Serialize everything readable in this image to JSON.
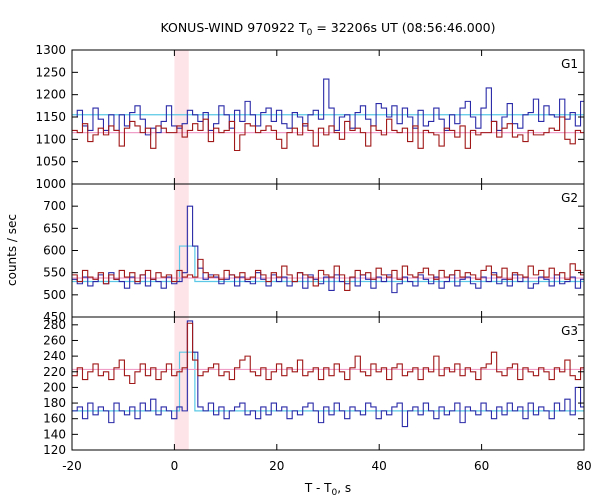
{
  "title": "KONUS-WIND 970922 T",
  "title_sub": "0",
  "title_rest": " = 32206s UT (08:56:46.000)",
  "xlabel": "T - T",
  "xlabel_sub": "0",
  "xlabel_rest": ", s",
  "ylabel": "counts / sec",
  "chart_data": {
    "type": "line",
    "title": "KONUS-WIND 970922 T0 = 32206s UT (08:56:46.000)",
    "xlabel": "T - T0, s",
    "ylabel": "counts / sec",
    "xlim": [
      -20,
      80
    ],
    "x_ticks": [
      -20,
      0,
      20,
      40,
      60,
      80
    ],
    "x_tick_labels": [
      "-20",
      "0",
      "20",
      "40",
      "60",
      "80"
    ],
    "highlight_interval": [
      0,
      2.8
    ],
    "colors": {
      "blue": "#2a2aa8",
      "red": "#a01818",
      "cyan": "#5ac8e6",
      "pink": "#f0a0c8",
      "highlight": "#fde4e8"
    },
    "panels": [
      {
        "label": "G1",
        "ylim": [
          1000,
          1300
        ],
        "yticks": [
          1000,
          1050,
          1100,
          1150,
          1200,
          1250,
          1300
        ],
        "ytick_labels": [
          "1000",
          "1050",
          "1100",
          "1150",
          "1200",
          "1250",
          "1300"
        ],
        "series": [
          {
            "color": "blue",
            "x0": -20,
            "dx": 1.024,
            "values": [
              1150,
              1165,
              1130,
              1120,
              1170,
              1145,
              1120,
              1155,
              1120,
              1155,
              1130,
              1160,
              1175,
              1145,
              1110,
              1125,
              1115,
              1140,
              1175,
              1130,
              1125,
              1135,
              1165,
              1155,
              1140,
              1160,
              1120,
              1135,
              1175,
              1155,
              1125,
              1165,
              1140,
              1185,
              1155,
              1130,
              1160,
              1170,
              1140,
              1165,
              1135,
              1125,
              1160,
              1150,
              1130,
              1155,
              1165,
              1145,
              1235,
              1170,
              1120,
              1150,
              1155,
              1125,
              1160,
              1175,
              1145,
              1130,
              1180,
              1170,
              1150,
              1175,
              1135,
              1170,
              1150,
              1125,
              1165,
              1130,
              1140,
              1170,
              1145,
              1120,
              1155,
              1135,
              1170,
              1185,
              1150,
              1125,
              1170,
              1215,
              1140,
              1120,
              1150,
              1180,
              1135,
              1125,
              1155,
              1160,
              1190,
              1140,
              1175,
              1155,
              1150,
              1190,
              1145,
              1160,
              1130,
              1185,
              1140
            ]
          },
          {
            "color": "red",
            "x0": -20,
            "dx": 1.024,
            "values": [
              1120,
              1115,
              1135,
              1095,
              1110,
              1125,
              1110,
              1130,
              1120,
              1085,
              1125,
              1140,
              1130,
              1115,
              1125,
              1080,
              1130,
              1125,
              1115,
              1115,
              1130,
              1105,
              1120,
              1135,
              1120,
              1145,
              1095,
              1125,
              1115,
              1120,
              1140,
              1075,
              1110,
              1135,
              1130,
              1115,
              1120,
              1130,
              1120,
              1100,
              1080,
              1115,
              1125,
              1110,
              1135,
              1120,
              1085,
              1125,
              1110,
              1130,
              1115,
              1100,
              1140,
              1120,
              1125,
              1115,
              1085,
              1130,
              1120,
              1110,
              1145,
              1120,
              1115,
              1125,
              1095,
              1130,
              1080,
              1120,
              1115,
              1110,
              1085,
              1125,
              1120,
              1105,
              1130,
              1080,
              1120,
              1110,
              1115,
              1115,
              1140,
              1105,
              1125,
              1135,
              1105,
              1110,
              1095,
              1120,
              1110,
              1110,
              1115,
              1125,
              1120,
              1150,
              1100,
              1090,
              1120,
              1115,
              1095
            ]
          }
        ],
        "fits": [
          {
            "color": "cyan",
            "value": 1155,
            "bump": null
          },
          {
            "color": "pink",
            "value": 1115,
            "bump": null
          }
        ]
      },
      {
        "label": "G2",
        "ylim": [
          450,
          750
        ],
        "yticks": [
          450,
          500,
          550,
          600,
          650,
          700
        ],
        "ytick_labels": [
          "450",
          "500",
          "550",
          "600",
          "650",
          "700"
        ],
        "series": [
          {
            "color": "blue",
            "x0": -20,
            "dx": 1.024,
            "values": [
              535,
              525,
              540,
              520,
              530,
              545,
              525,
              550,
              535,
              530,
              515,
              540,
              525,
              545,
              520,
              535,
              530,
              515,
              540,
              525,
              530,
              550,
              700,
              610,
              560,
              535,
              545,
              540,
              525,
              535,
              545,
              520,
              540,
              530,
              525,
              550,
              535,
              520,
              545,
              530,
              540,
              520,
              530,
              550,
              515,
              545,
              535,
              525,
              540,
              510,
              545,
              530,
              525,
              540,
              520,
              545,
              535,
              515,
              540,
              530,
              545,
              505,
              525,
              540,
              530,
              520,
              545,
              535,
              525,
              540,
              515,
              530,
              545,
              520,
              535,
              540,
              525,
              515,
              540,
              530,
              550,
              525,
              535,
              520,
              545,
              530,
              540,
              515,
              525,
              540,
              535,
              520,
              545,
              525,
              530,
              540,
              515,
              535,
              525
            ]
          },
          {
            "color": "red",
            "x0": -20,
            "dx": 1.024,
            "values": [
              545,
              530,
              555,
              540,
              535,
              550,
              525,
              545,
              535,
              555,
              540,
              550,
              530,
              545,
              555,
              535,
              550,
              540,
              545,
              530,
              555,
              540,
              545,
              540,
              580,
              550,
              540,
              545,
              535,
              555,
              545,
              540,
              550,
              535,
              540,
              555,
              545,
              530,
              550,
              540,
              565,
              545,
              530,
              550,
              545,
              540,
              520,
              555,
              545,
              540,
              565,
              545,
              510,
              540,
              555,
              545,
              550,
              535,
              560,
              545,
              540,
              555,
              535,
              565,
              545,
              540,
              550,
              560,
              545,
              535,
              555,
              540,
              545,
              555,
              540,
              550,
              545,
              535,
              555,
              565,
              545,
              540,
              560,
              535,
              550,
              545,
              540,
              565,
              545,
              555,
              540,
              560,
              545,
              550,
              535,
              570,
              555,
              545,
              560
            ]
          }
        ],
        "fits": [
          {
            "color": "cyan",
            "value": 530,
            "bump": {
              "x": [
                1.0,
                4.0
              ],
              "value": 610
            }
          },
          {
            "color": "pink",
            "value": 538,
            "bump": null
          }
        ]
      },
      {
        "label": "G3",
        "ylim": [
          120,
          290
        ],
        "yticks": [
          120,
          140,
          160,
          180,
          200,
          220,
          240,
          260,
          280
        ],
        "ytick_labels": [
          "120",
          "140",
          "160",
          "180",
          "200",
          "220",
          "240",
          "260",
          "280"
        ],
        "series": [
          {
            "color": "blue",
            "x0": -20,
            "dx": 1.024,
            "values": [
              170,
              175,
              160,
              180,
              165,
              175,
              170,
              155,
              180,
              170,
              165,
              175,
              160,
              180,
              170,
              185,
              165,
              175,
              170,
              160,
              175,
              170,
              285,
              245,
              175,
              170,
              180,
              165,
              175,
              160,
              170,
              175,
              180,
              165,
              170,
              160,
              175,
              165,
              180,
              170,
              175,
              160,
              170,
              165,
              175,
              180,
              170,
              155,
              175,
              165,
              180,
              170,
              160,
              175,
              170,
              165,
              180,
              175,
              160,
              170,
              165,
              175,
              180,
              150,
              170,
              175,
              165,
              180,
              170,
              160,
              175,
              165,
              170,
              180,
              155,
              175,
              170,
              165,
              180,
              170,
              160,
              175,
              165,
              180,
              170,
              175,
              160,
              180,
              165,
              175,
              170,
              160,
              180,
              170,
              185,
              165,
              200,
              175,
              170
            ]
          },
          {
            "color": "red",
            "x0": -20,
            "dx": 1.024,
            "values": [
              215,
              225,
              210,
              220,
              230,
              215,
              220,
              210,
              225,
              235,
              215,
              205,
              220,
              230,
              215,
              225,
              210,
              220,
              230,
              215,
              220,
              225,
              282,
              235,
              215,
              220,
              225,
              230,
              215,
              220,
              210,
              225,
              235,
              240,
              220,
              215,
              225,
              210,
              220,
              230,
              215,
              225,
              220,
              235,
              215,
              220,
              225,
              210,
              225,
              215,
              230,
              220,
              210,
              225,
              240,
              220,
              215,
              230,
              220,
              225,
              210,
              225,
              230,
              215,
              220,
              225,
              210,
              225,
              220,
              240,
              215,
              225,
              220,
              230,
              215,
              225,
              220,
              210,
              225,
              230,
              245,
              220,
              215,
              225,
              230,
              210,
              225,
              220,
              215,
              225,
              220,
              210,
              225,
              220,
              235,
              215,
              210,
              225,
              220
            ]
          }
        ],
        "fits": [
          {
            "color": "cyan",
            "value": 170,
            "bump": {
              "x": [
                1.0,
                4.0
              ],
              "value": 245
            }
          },
          {
            "color": "pink",
            "value": 223,
            "bump": null
          }
        ]
      }
    ]
  }
}
